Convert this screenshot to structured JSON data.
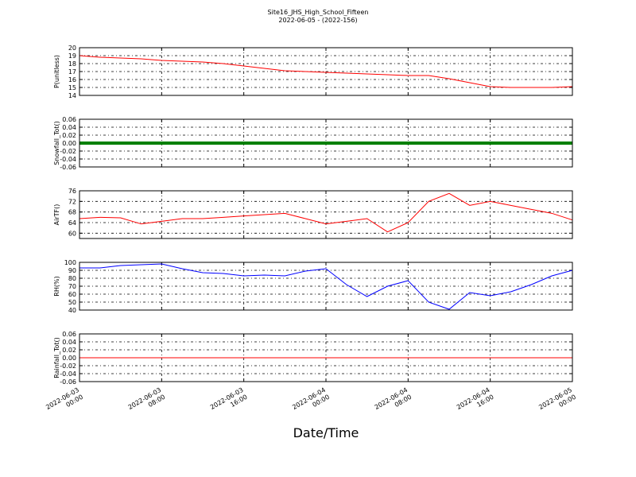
{
  "chart_data": [
    {
      "type": "line",
      "title": "Site16_JHS_High_School_Fifteen",
      "subtitle": "2022-06-05 - (2022-156)",
      "ylabel": "P(unitless)",
      "color": "#ff0000",
      "linewidth": 1,
      "x": [
        "2022-06-03 00:00",
        "2022-06-03 02:00",
        "2022-06-03 04:00",
        "2022-06-03 06:00",
        "2022-06-03 08:00",
        "2022-06-03 10:00",
        "2022-06-03 12:00",
        "2022-06-03 14:00",
        "2022-06-03 16:00",
        "2022-06-03 18:00",
        "2022-06-03 20:00",
        "2022-06-03 22:00",
        "2022-06-04 00:00",
        "2022-06-04 02:00",
        "2022-06-04 04:00",
        "2022-06-04 06:00",
        "2022-06-04 08:00",
        "2022-06-04 10:00",
        "2022-06-04 12:00",
        "2022-06-04 14:00",
        "2022-06-04 16:00",
        "2022-06-04 18:00",
        "2022-06-04 20:00",
        "2022-06-04 22:00",
        "2022-06-05 00:00"
      ],
      "values": [
        19.0,
        18.8,
        18.7,
        18.6,
        18.4,
        18.3,
        18.2,
        18.0,
        17.7,
        17.4,
        17.1,
        17.0,
        16.9,
        16.8,
        16.7,
        16.6,
        16.5,
        16.5,
        16.1,
        15.6,
        15.1,
        15.0,
        15.0,
        15.0,
        15.1
      ],
      "ylim": [
        14,
        20
      ],
      "yticks": [
        14,
        15,
        16,
        17,
        18,
        19,
        20
      ],
      "xlim": [
        "2022-06-03 00:00",
        "2022-06-05 00:00"
      ],
      "grid": true
    },
    {
      "type": "line",
      "ylabel": "Snowfall_Tot()",
      "color": "#008000",
      "linewidth": 4,
      "x": [
        "2022-06-03 00:00",
        "2022-06-03 02:00",
        "2022-06-03 04:00",
        "2022-06-03 06:00",
        "2022-06-03 08:00",
        "2022-06-03 10:00",
        "2022-06-03 12:00",
        "2022-06-03 14:00",
        "2022-06-03 16:00",
        "2022-06-03 18:00",
        "2022-06-03 20:00",
        "2022-06-03 22:00",
        "2022-06-04 00:00",
        "2022-06-04 02:00",
        "2022-06-04 04:00",
        "2022-06-04 06:00",
        "2022-06-04 08:00",
        "2022-06-04 10:00",
        "2022-06-04 12:00",
        "2022-06-04 14:00",
        "2022-06-04 16:00",
        "2022-06-04 18:00",
        "2022-06-04 20:00",
        "2022-06-04 22:00",
        "2022-06-05 00:00"
      ],
      "values": [
        0,
        0,
        0,
        0,
        0,
        0,
        0,
        0,
        0,
        0,
        0,
        0,
        0,
        0,
        0,
        0,
        0,
        0,
        0,
        0,
        0,
        0,
        0,
        0,
        0
      ],
      "ylim": [
        -0.06,
        0.06
      ],
      "yticks": [
        -0.06,
        -0.04,
        -0.02,
        {
          "value": 0,
          "label": "0.00"
        },
        0.02,
        0.04,
        0.06
      ],
      "xlim": [
        "2022-06-03 00:00",
        "2022-06-05 00:00"
      ],
      "grid": true
    },
    {
      "type": "line",
      "ylabel": "AirTF()",
      "color": "#ff0000",
      "linewidth": 1,
      "x": [
        "2022-06-03 00:00",
        "2022-06-03 02:00",
        "2022-06-03 04:00",
        "2022-06-03 06:00",
        "2022-06-03 08:00",
        "2022-06-03 10:00",
        "2022-06-03 12:00",
        "2022-06-03 14:00",
        "2022-06-03 16:00",
        "2022-06-03 18:00",
        "2022-06-03 20:00",
        "2022-06-03 22:00",
        "2022-06-04 00:00",
        "2022-06-04 02:00",
        "2022-06-04 04:00",
        "2022-06-04 06:00",
        "2022-06-04 08:00",
        "2022-06-04 10:00",
        "2022-06-04 12:00",
        "2022-06-04 14:00",
        "2022-06-04 16:00",
        "2022-06-04 18:00",
        "2022-06-04 20:00",
        "2022-06-04 22:00",
        "2022-06-05 00:00"
      ],
      "values": [
        65.5,
        66,
        65.8,
        63.5,
        64.5,
        65.5,
        65.5,
        66,
        66.5,
        67,
        67.5,
        65.5,
        63.5,
        64.5,
        65.5,
        60.5,
        64,
        72,
        75,
        70.5,
        72,
        70.5,
        69,
        67.5,
        65
      ],
      "ylim": [
        58,
        76
      ],
      "yticks": [
        60,
        64,
        68,
        72,
        76
      ],
      "xlim": [
        "2022-06-03 00:00",
        "2022-06-05 00:00"
      ],
      "grid": true
    },
    {
      "type": "line",
      "ylabel": "RH(%)",
      "color": "#0000ff",
      "linewidth": 1,
      "x": [
        "2022-06-03 00:00",
        "2022-06-03 02:00",
        "2022-06-03 04:00",
        "2022-06-03 06:00",
        "2022-06-03 08:00",
        "2022-06-03 10:00",
        "2022-06-03 12:00",
        "2022-06-03 14:00",
        "2022-06-03 16:00",
        "2022-06-03 18:00",
        "2022-06-03 20:00",
        "2022-06-03 22:00",
        "2022-06-04 00:00",
        "2022-06-04 02:00",
        "2022-06-04 04:00",
        "2022-06-04 06:00",
        "2022-06-04 08:00",
        "2022-06-04 10:00",
        "2022-06-04 12:00",
        "2022-06-04 14:00",
        "2022-06-04 16:00",
        "2022-06-04 18:00",
        "2022-06-04 20:00",
        "2022-06-04 22:00",
        "2022-06-05 00:00"
      ],
      "values": [
        93,
        93,
        96,
        97,
        98,
        92,
        87,
        86,
        83,
        84,
        83,
        89,
        92,
        72,
        57,
        70,
        77,
        50,
        41,
        62,
        58,
        63,
        72,
        83,
        90
      ],
      "ylim": [
        40,
        100
      ],
      "yticks": [
        40,
        50,
        60,
        70,
        80,
        90,
        100
      ],
      "xlim": [
        "2022-06-03 00:00",
        "2022-06-05 00:00"
      ],
      "grid": true
    },
    {
      "type": "line",
      "ylabel": "Rainfall_Tot()",
      "xlabel": "Date/Time",
      "color": "#ff0000",
      "linewidth": 1,
      "x": [
        "2022-06-03 00:00",
        "2022-06-03 02:00",
        "2022-06-03 04:00",
        "2022-06-03 06:00",
        "2022-06-03 08:00",
        "2022-06-03 10:00",
        "2022-06-03 12:00",
        "2022-06-03 14:00",
        "2022-06-03 16:00",
        "2022-06-03 18:00",
        "2022-06-03 20:00",
        "2022-06-03 22:00",
        "2022-06-04 00:00",
        "2022-06-04 02:00",
        "2022-06-04 04:00",
        "2022-06-04 06:00",
        "2022-06-04 08:00",
        "2022-06-04 10:00",
        "2022-06-04 12:00",
        "2022-06-04 14:00",
        "2022-06-04 16:00",
        "2022-06-04 18:00",
        "2022-06-04 20:00",
        "2022-06-04 22:00",
        "2022-06-05 00:00"
      ],
      "values": [
        0,
        0,
        0,
        0,
        0,
        0,
        0,
        0,
        0,
        0,
        0,
        0,
        0,
        0,
        0,
        0,
        0,
        0,
        0,
        0,
        0,
        0,
        0,
        0,
        0
      ],
      "ylim": [
        -0.06,
        0.06
      ],
      "yticks": [
        -0.06,
        -0.04,
        -0.02,
        {
          "value": 0,
          "label": "0.00"
        },
        0.02,
        0.04,
        0.06
      ],
      "xlim": [
        "2022-06-03 00:00",
        "2022-06-05 00:00"
      ],
      "xticks": [
        "2022-06-03 00:00",
        "2022-06-03 08:00",
        "2022-06-03 16:00",
        "2022-06-04 00:00",
        "2022-06-04 08:00",
        "2022-06-04 16:00",
        "2022-06-05 00:00"
      ],
      "grid": true
    }
  ]
}
